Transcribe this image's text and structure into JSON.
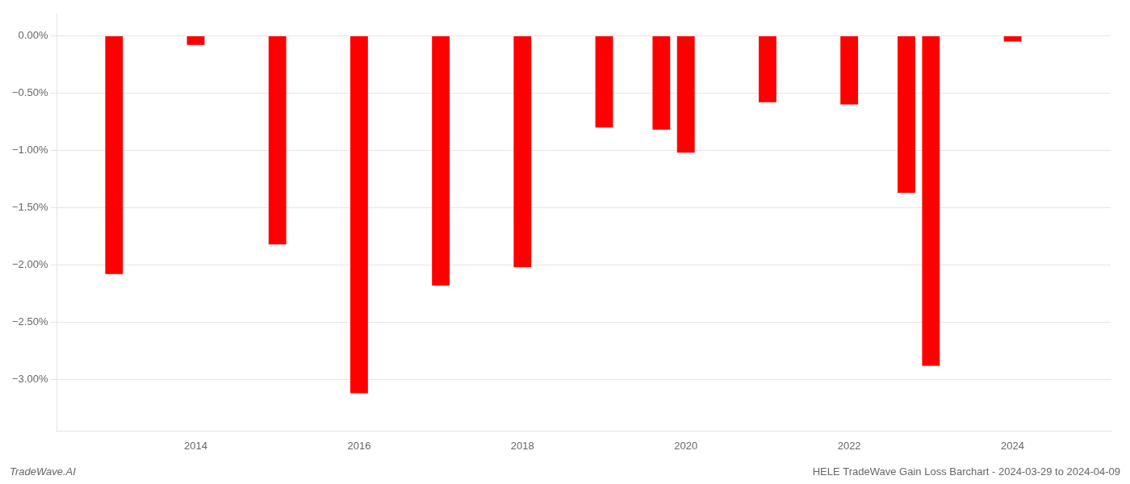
{
  "chart_data": {
    "type": "bar",
    "x": [
      2013,
      2014,
      2015,
      2016,
      2017,
      2018,
      2019,
      2019.7,
      2020,
      2021,
      2022,
      2022.7,
      2023,
      2024
    ],
    "values": [
      -2.08,
      -0.08,
      -1.82,
      -3.12,
      -2.18,
      -2.02,
      -0.8,
      -0.82,
      -1.02,
      -0.58,
      -0.6,
      -1.37,
      -2.88,
      -0.05
    ],
    "color": "#ff0000",
    "xlim": [
      2012.3,
      2025.2
    ],
    "xticks": [
      2014,
      2016,
      2018,
      2020,
      2022,
      2024
    ],
    "ylim": [
      -3.45,
      0.2
    ],
    "yticks": [
      {
        "value": 0.0,
        "label": "0.00%"
      },
      {
        "value": -0.5,
        "label": "−0.50%"
      },
      {
        "value": -1.0,
        "label": "−1.00%"
      },
      {
        "value": -1.5,
        "label": "−1.50%"
      },
      {
        "value": -2.0,
        "label": "−2.00%"
      },
      {
        "value": -2.5,
        "label": "−2.50%"
      },
      {
        "value": -3.0,
        "label": "−3.00%"
      }
    ],
    "grid": true,
    "annotations": [
      "TradeWave.AI",
      "HELE TradeWave Gain Loss Barchart - 2024-03-29 to 2024-04-09"
    ]
  }
}
